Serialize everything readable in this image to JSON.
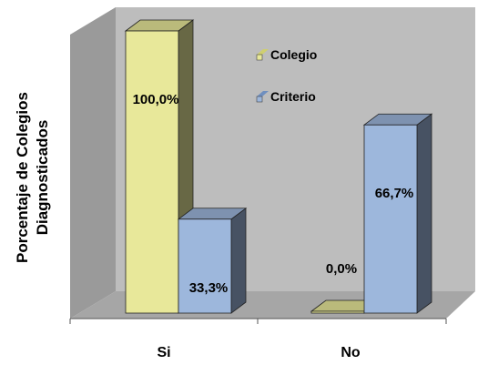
{
  "chart_data": {
    "type": "bar",
    "style": "3d-column",
    "categories": [
      "Si",
      "No"
    ],
    "series": [
      {
        "name": "Colegio",
        "values": [
          100.0,
          0.0
        ],
        "labels": [
          "100,0%",
          "0,0%"
        ],
        "color": "#e8e89a"
      },
      {
        "name": "Criterio",
        "values": [
          33.3,
          66.7
        ],
        "labels": [
          "33,3%",
          "66,7%"
        ],
        "color": "#9db7dc"
      }
    ],
    "ylabel": "Porcentaje de Colegios Diagnosticados",
    "ylabel_lines": [
      "Porcentaje de Colegios",
      "Diagnosticados"
    ],
    "ylim": [
      0,
      100
    ],
    "legend_position": "inside-top",
    "grid": false,
    "colors": {
      "wall": "#bdbdbd",
      "wall_side": "#9a9a9a",
      "floor": "#a6a6a6"
    }
  }
}
